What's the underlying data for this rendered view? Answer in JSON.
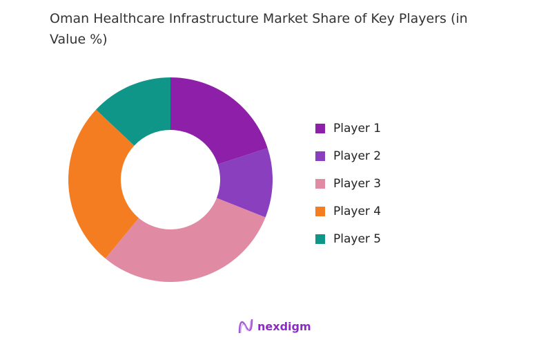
{
  "chart_data": {
    "type": "pie",
    "title": "Oman Healthcare Infrastructure Market Share of Key Players (in Value %)",
    "categories": [
      "Player 1",
      "Player 2",
      "Player 3",
      "Player 4",
      "Player 5"
    ],
    "values": [
      20,
      11,
      30,
      26,
      13
    ],
    "colors": [
      "#8e1fa8",
      "#8a3fbf",
      "#e08aa4",
      "#f47d22",
      "#0f9688"
    ],
    "donut": true,
    "legend_position": "right"
  },
  "logo": {
    "text": "nexdigm"
  }
}
